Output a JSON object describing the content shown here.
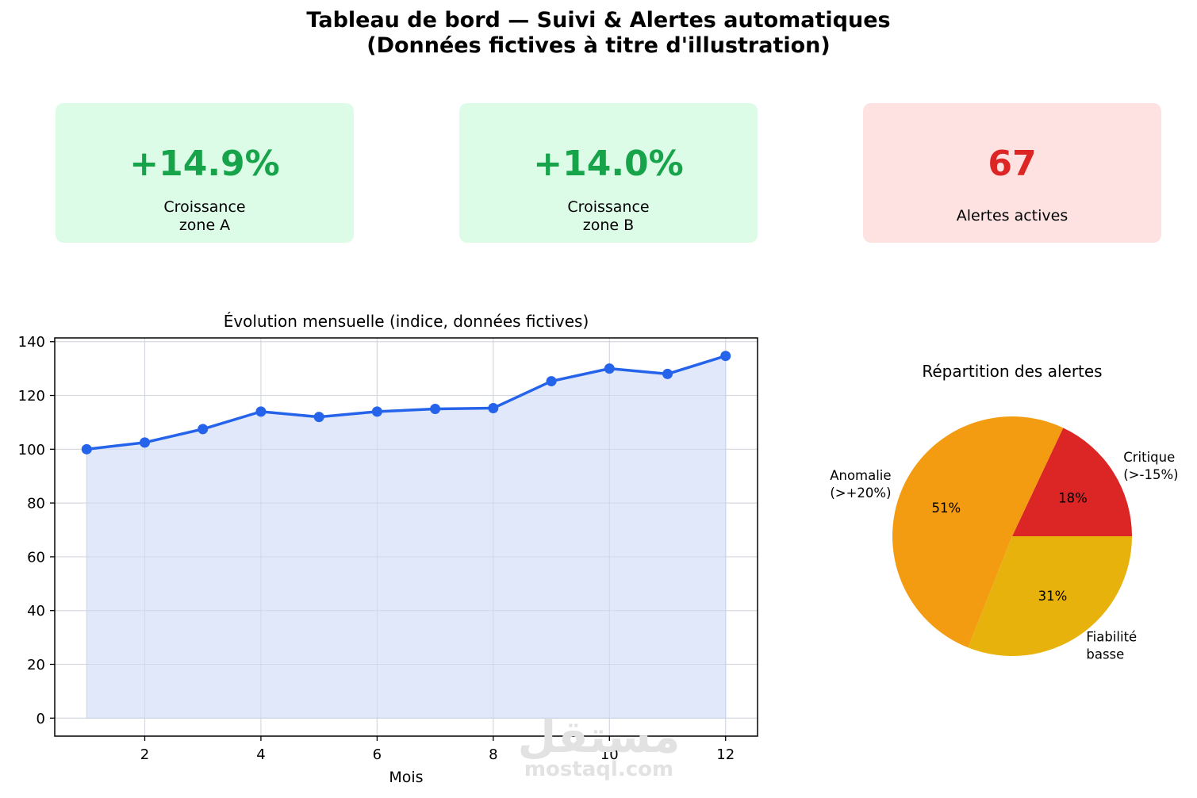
{
  "header": {
    "title_line1": "Tableau de bord — Suivi & Alertes automatiques",
    "title_line2": "(Données fictives à titre d'illustration)"
  },
  "kpis": [
    {
      "value": "+14.9%",
      "label": "Croissance\nzone A",
      "status": "positive",
      "color": "#16a34a",
      "background": "#dcfce7"
    },
    {
      "value": "+14.0%",
      "label": "Croissance\nzone B",
      "status": "positive",
      "color": "#16a34a",
      "background": "#dcfce7"
    },
    {
      "value": "67",
      "label": "Alertes actives",
      "status": "alert",
      "color": "#dc2626",
      "background": "#fee2e2"
    }
  ],
  "watermark": {
    "arabic": "مستقل",
    "text": "mostaql.com"
  },
  "chart_data": [
    {
      "type": "area",
      "title": "Évolution mensuelle (indice, données fictives)",
      "xlabel": "Mois",
      "ylabel": "",
      "x": [
        1,
        2,
        3,
        4,
        5,
        6,
        7,
        8,
        9,
        10,
        11,
        12
      ],
      "series": [
        {
          "values": [
            100,
            102.5,
            107.5,
            114,
            112,
            114,
            115,
            115.3,
            125.3,
            130,
            128,
            134.7
          ],
          "color": "#2563eb"
        }
      ],
      "xlim": [
        0.45,
        12.55
      ],
      "ylim": [
        -6.7,
        141.4
      ],
      "xticks": [
        2,
        4,
        6,
        8,
        10,
        12
      ],
      "yticks": [
        0,
        20,
        40,
        60,
        80,
        100,
        120,
        140
      ],
      "grid": true,
      "fill_color": "#dde6fa"
    },
    {
      "type": "pie",
      "title": "Répartition des alertes",
      "slices": [
        {
          "label": "Critique\n(>-15%)",
          "value": 18,
          "pct_label": "18%",
          "color": "#dc2626"
        },
        {
          "label": "Anomalie\n(>+20%)",
          "value": 51,
          "pct_label": "51%",
          "color": "#f39c12"
        },
        {
          "label": "Fiabilité\nbasse",
          "value": 31,
          "pct_label": "31%",
          "color": "#e8b20c"
        }
      ]
    }
  ]
}
